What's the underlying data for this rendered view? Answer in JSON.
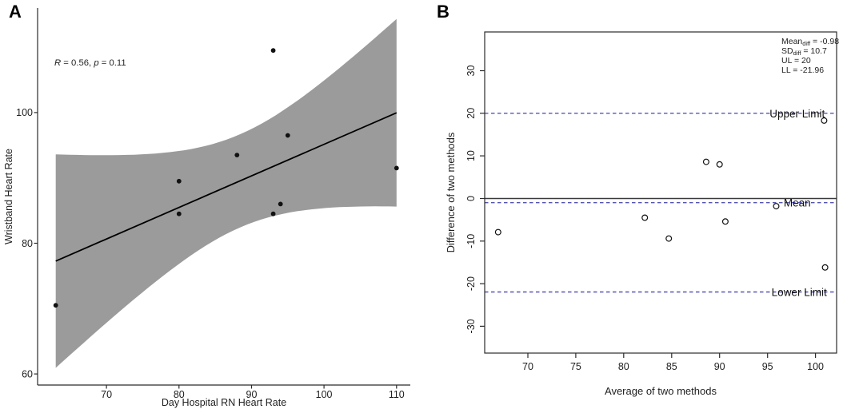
{
  "figure": {
    "panels": [
      {
        "label": "A"
      },
      {
        "label": "B"
      }
    ]
  },
  "chart_data": [
    {
      "id": "panel-a",
      "panel_label": "A",
      "type": "scatter",
      "title": "",
      "xlabel": "Day Hospital RN Heart Rate",
      "ylabel": "Wristband Heart Rate",
      "xticks": [
        70,
        80,
        90,
        100,
        110
      ],
      "yticks": [
        60,
        80,
        100
      ],
      "xlim": [
        60.5,
        111.9
      ],
      "ylim": [
        58.3,
        116.0
      ],
      "grid": false,
      "frame": "classic",
      "point_style": "filled",
      "points": [
        [
          63,
          70.5
        ],
        [
          80,
          84.5
        ],
        [
          80,
          89.5
        ],
        [
          88,
          93.5
        ],
        [
          93,
          109.5
        ],
        [
          93,
          84.5
        ],
        [
          94,
          86
        ],
        [
          95,
          96.5
        ],
        [
          110,
          91.5
        ]
      ],
      "annotation": {
        "segments": [
          {
            "text": "R",
            "italic": true
          },
          {
            "text": " = 0.56, ",
            "italic": false
          },
          {
            "text": "p",
            "italic": true
          },
          {
            "text": " = 0.11",
            "italic": false
          }
        ],
        "x": 68,
        "y": 82
      },
      "regression": {
        "x_start": 63,
        "x_end": 110,
        "ci": true,
        "ci_level": 0.95,
        "t_crit": 2.365,
        "line_color": "#000000",
        "band_color": "#9b9b9b"
      }
    },
    {
      "id": "panel-b",
      "panel_label": "B",
      "type": "scatter",
      "title": "",
      "xlabel": "Average of two methods",
      "ylabel": "Difference of two methods",
      "xticks": [
        70,
        75,
        80,
        85,
        90,
        95,
        100
      ],
      "yticks": [
        -30,
        -20,
        -10,
        0,
        10,
        20,
        30
      ],
      "xlim": [
        65.5,
        102.2
      ],
      "ylim": [
        -36.3,
        39.1
      ],
      "grid": false,
      "frame": "box",
      "point_style": "open",
      "points": [
        [
          66.9,
          -7.9
        ],
        [
          82.2,
          -4.5
        ],
        [
          84.7,
          -9.4
        ],
        [
          88.6,
          8.6
        ],
        [
          90,
          8
        ],
        [
          90.6,
          -5.4
        ],
        [
          95.9,
          -1.8
        ],
        [
          100.9,
          18.3
        ],
        [
          101,
          -16.2
        ]
      ],
      "hlines": [
        {
          "y": 0,
          "style": "solid",
          "color": "#3a3a3a",
          "label": null,
          "label_x": null
        },
        {
          "y": 20,
          "style": "dashed",
          "color": "#5454b4",
          "label": "Upper Limit",
          "label_x": 98.1
        },
        {
          "y": -0.98,
          "style": "dashed",
          "color": "#5454b4",
          "label": "Mean",
          "label_x": 98.1
        },
        {
          "y": -21.96,
          "style": "dashed",
          "color": "#5454b4",
          "label": "Lower Limit",
          "label_x": 98.3
        }
      ],
      "stats": {
        "x": 447,
        "y": 55,
        "line_height": 12,
        "lines": [
          {
            "segments": [
              {
                "text": "Mean"
              },
              {
                "text": "diff",
                "sub": true
              },
              {
                "text": " = -0.98"
              }
            ]
          },
          {
            "segments": [
              {
                "text": "SD"
              },
              {
                "text": "diff",
                "sub": true
              },
              {
                "text": " = 10.7"
              }
            ]
          },
          {
            "segments": [
              {
                "text": "UL = 20"
              }
            ]
          },
          {
            "segments": [
              {
                "text": "LL = -21.96"
              }
            ]
          }
        ]
      }
    }
  ]
}
